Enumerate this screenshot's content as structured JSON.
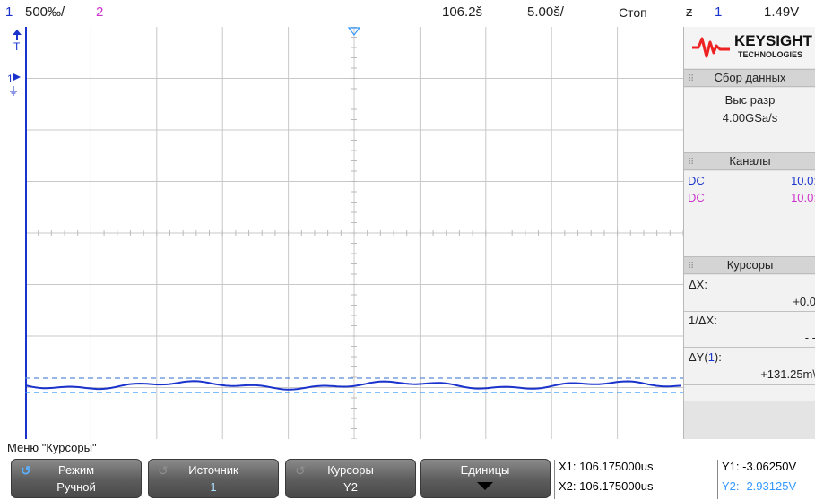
{
  "topbar": {
    "ch1_num": "1",
    "ch1_scale": "500‰/",
    "ch2_num": "2",
    "delay": "106.2š",
    "timebase": "5.00š/",
    "run_state": "Стоп",
    "trig_icon": "ƶ",
    "trig_channel": "1",
    "trig_level": "1.49V"
  },
  "markers": {
    "trigger_t": "T",
    "ch1_ground": "1"
  },
  "side": {
    "logo_main": "KEYSIGHT",
    "logo_sub": "TECHNOLOGIES",
    "acq_header": "Сбор данных",
    "acq_mode": "Выс разр",
    "acq_rate": "4.00GSa/s",
    "channels_header": "Каналы",
    "ch1_coupling": "DC",
    "ch1_value": "10.0:",
    "ch2_coupling": "DC",
    "ch2_value": "10.0:",
    "cursors_header": "Курсоры",
    "dx_label": "ΔX:",
    "dx_value": "+0.0",
    "inv_dx_label": "1/ΔX:",
    "inv_dx_value": "- -",
    "dy_label_prefix": "ΔY(",
    "dy_label_ch": "1",
    "dy_label_suffix": "):",
    "dy_value": "+131.25m\\"
  },
  "menu": {
    "title": "Меню \"Курсоры\"",
    "keys": [
      {
        "label": "Режим",
        "value": "Ручной"
      },
      {
        "label": "Источник",
        "value": "1"
      },
      {
        "label": "Курсоры",
        "value": "Y2"
      },
      {
        "label": "Единицы",
        "value": ""
      }
    ]
  },
  "readouts": {
    "x1": "X1: 106.175000us",
    "x2": "X2: 106.175000us",
    "y1": "Y1: -3.06250V",
    "y2": "Y2: -2.93125V"
  },
  "colors": {
    "ch1": "#1a33cc",
    "ch2": "#cc33cc",
    "cursor_active": "#3399ff",
    "grid": "#c8c8c8"
  }
}
